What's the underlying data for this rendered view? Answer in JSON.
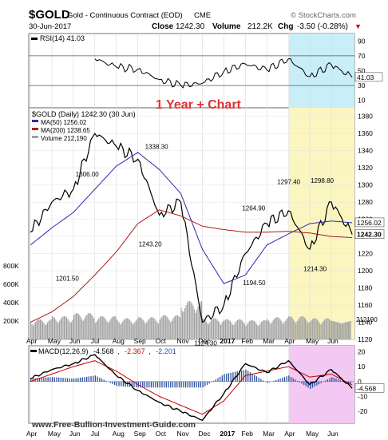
{
  "header": {
    "symbol": "$GOLD",
    "name": "Gold - Continuous Contract (EOD)",
    "exchange": "CME",
    "brand": "© StockCharts.com",
    "date": "30-Jun-2017",
    "close_label": "Close",
    "close_value": "1242.30",
    "volume_label": "Volume",
    "volume_value": "212.2K",
    "chg_label": "Chg",
    "chg_value": "-3.50 (-0.28%)",
    "chg_arrow": "▼"
  },
  "annotation": "1 Year + Chart",
  "watermark": "www.Free-Bullion-Investment-Guide.com",
  "colors": {
    "price": "#000000",
    "ma50": "#2b2bb0",
    "ma200": "#b01818",
    "volume": "#a0a0a0",
    "rsi": "#000000",
    "macd": "#000000",
    "signal": "#cc0000",
    "histogram": "#2b4f9e",
    "recent_price_bg": "#fbf6c0",
    "recent_rsi_bg": "#c8eef8",
    "recent_macd_bg": "#f3c8f3",
    "accent_text": "#e03030"
  },
  "chart_data": [
    {
      "type": "line",
      "panel": "rsi",
      "title": "RSI(14) 41.03",
      "current_label": "41.03",
      "ylim": [
        0,
        100
      ],
      "y_ticks": [
        "90",
        "70",
        "50",
        "30",
        "10"
      ],
      "reference_lines": [
        70,
        30
      ],
      "x": [
        "Jul 2016",
        "Aug 2016",
        "Sep 2016",
        "Oct 2016",
        "Nov 2016",
        "Dec 2016",
        "Jan 2017",
        "Feb 2017",
        "Mar 2017",
        "Apr 2017",
        "May 2017",
        "Jun 2017",
        "30 Jun 2017"
      ],
      "values": [
        66,
        55,
        52,
        38,
        30,
        33,
        49,
        59,
        51,
        66,
        42,
        58,
        41
      ]
    },
    {
      "type": "line",
      "panel": "price",
      "title": "$GOLD (Daily) 1242.30 (30 Jun)",
      "legend": [
        {
          "name": "MA(50) 1256.02",
          "color": "#2b2bb0"
        },
        {
          "name": "MA(200) 1238.65",
          "color": "#b01818"
        },
        {
          "name": "Volume 212,190",
          "color": "#a0a0a0"
        }
      ],
      "ylim": [
        1120,
        1390
      ],
      "y_ticks": [
        "1380",
        "1360",
        "1340",
        "1320",
        "1300",
        "1280",
        "1260",
        "1240",
        "1220",
        "1200",
        "1180",
        "1160",
        "1140",
        "1120"
      ],
      "current_labels": [
        "1256.02",
        "1242.30"
      ],
      "x_labels": [
        "Apr",
        "May",
        "Jun",
        "Jul",
        "Aug",
        "Sep",
        "Oct",
        "Nov",
        "Dec",
        "2017",
        "Feb",
        "Mar",
        "Apr",
        "May",
        "Jun"
      ],
      "annotations": [
        {
          "label": "1306.00",
          "value": 1306.0
        },
        {
          "label": "1201.50",
          "value": 1201.5
        },
        {
          "label": "1338.30",
          "value": 1338.3
        },
        {
          "label": "1243.20",
          "value": 1243.2
        },
        {
          "label": "1124.30",
          "value": 1124.3
        },
        {
          "label": "1264.90",
          "value": 1264.9
        },
        {
          "label": "1194.50",
          "value": 1194.5
        },
        {
          "label": "1297.40",
          "value": 1297.4
        },
        {
          "label": "1214.30",
          "value": 1214.3
        },
        {
          "label": "1298.80",
          "value": 1298.8
        }
      ],
      "series": [
        {
          "name": "$GOLD",
          "x": [
            "Apr 2016",
            "May 2016",
            "Jun 2016",
            "Jul 2016",
            "Aug 2016",
            "Sep 2016",
            "Oct 2016",
            "Nov 2016",
            "Dec 2016",
            "Jan 2017",
            "Feb 2017",
            "Mar 2017",
            "Apr 2017",
            "May 2017",
            "Jun 2017",
            "30 Jun 2017"
          ],
          "values": [
            1245,
            1280,
            1295,
            1360,
            1345,
            1330,
            1265,
            1280,
            1140,
            1160,
            1220,
            1255,
            1270,
            1225,
            1280,
            1242.3
          ]
        },
        {
          "name": "MA(50)",
          "x": [
            "Apr 2016",
            "May 2016",
            "Jun 2016",
            "Jul 2016",
            "Aug 2016",
            "Sep 2016",
            "Oct 2016",
            "Nov 2016",
            "Dec 2016",
            "Jan 2017",
            "Feb 2017",
            "Mar 2017",
            "Apr 2017",
            "May 2017",
            "Jun 2017",
            "30 Jun 2017"
          ],
          "values": [
            1230,
            1250,
            1268,
            1295,
            1322,
            1338,
            1318,
            1290,
            1225,
            1185,
            1195,
            1230,
            1243,
            1255,
            1258,
            1256.02
          ]
        },
        {
          "name": "MA(200)",
          "x": [
            "Apr 2016",
            "May 2016",
            "Jun 2016",
            "Jul 2016",
            "Aug 2016",
            "Sep 2016",
            "Oct 2016",
            "Nov 2016",
            "Dec 2016",
            "Jan 2017",
            "Feb 2017",
            "Mar 2017",
            "Apr 2017",
            "May 2017",
            "Jun 2017",
            "30 Jun 2017"
          ],
          "values": [
            1140,
            1152,
            1170,
            1195,
            1222,
            1255,
            1271,
            1264,
            1252,
            1248,
            1245,
            1245,
            1246,
            1244,
            1240,
            1238.65
          ]
        }
      ]
    },
    {
      "type": "bar",
      "panel": "volume",
      "title": "Volume 212,190",
      "y_ticks": [
        "800K",
        "600K",
        "400K",
        "200K"
      ],
      "current_label": "212190",
      "x": [
        "Apr 2016",
        "May 2016",
        "Jun 2016",
        "Jul 2016",
        "Aug 2016",
        "Sep 2016",
        "Oct 2016",
        "Nov 2016",
        "Dec 2016",
        "Jan 2017",
        "Feb 2017",
        "Mar 2017",
        "Apr 2017",
        "May 2017",
        "Jun 2017"
      ],
      "values": [
        200000,
        230000,
        260000,
        230000,
        210000,
        220000,
        240000,
        380000,
        210000,
        200000,
        190000,
        220000,
        230000,
        210000,
        230000
      ]
    },
    {
      "type": "line",
      "panel": "macd",
      "title": "MACD(12,26,9)",
      "values_text": {
        "macd": "-4.568",
        "signal": "-2.367",
        "histogram": "-2.201"
      },
      "y_ticks": [
        "20",
        "10",
        "0",
        "-10",
        "-20"
      ],
      "current_label": "-4.568",
      "x_labels": [
        "Apr",
        "May",
        "Jun",
        "Jul",
        "Aug",
        "Sep",
        "Oct",
        "Nov",
        "Dec",
        "2017",
        "Feb",
        "Mar",
        "Apr",
        "May",
        "Jun"
      ],
      "series": [
        {
          "name": "MACD",
          "x": [
            "Apr 2016",
            "May 2016",
            "Jun 2016",
            "Jul 2016",
            "Aug 2016",
            "Sep 2016",
            "Oct 2016",
            "Nov 2016",
            "Dec 2016",
            "Jan 2017",
            "Feb 2017",
            "Mar 2017",
            "Apr 2017",
            "May 2017",
            "Jun 2017",
            "30 Jun 2017"
          ],
          "values": [
            2,
            8,
            12,
            18,
            4,
            -6,
            -14,
            -20,
            -26,
            -8,
            12,
            6,
            14,
            -2,
            8,
            -4.568
          ]
        },
        {
          "name": "Signal",
          "x": [
            "Apr 2016",
            "May 2016",
            "Jun 2016",
            "Jul 2016",
            "Aug 2016",
            "Sep 2016",
            "Oct 2016",
            "Nov 2016",
            "Dec 2016",
            "Jan 2017",
            "Feb 2017",
            "Mar 2017",
            "Apr 2017",
            "May 2017",
            "Jun 2017",
            "30 Jun 2017"
          ],
          "values": [
            0,
            5,
            10,
            14,
            7,
            -2,
            -10,
            -16,
            -22,
            -13,
            4,
            7,
            10,
            3,
            5,
            -2.367
          ]
        }
      ]
    }
  ]
}
